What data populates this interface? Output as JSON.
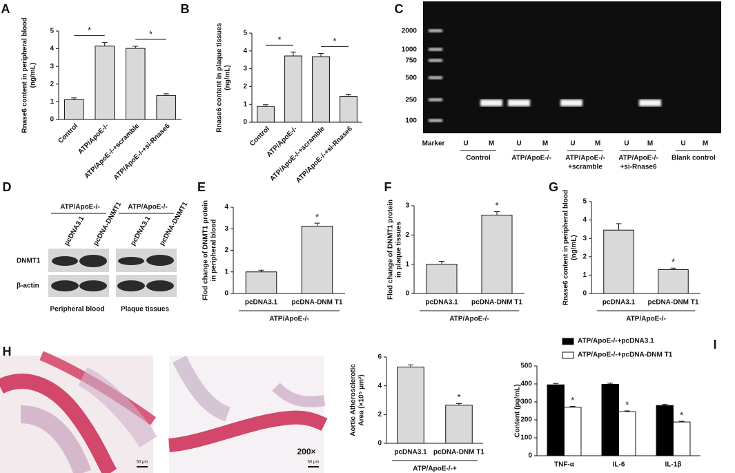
{
  "chart_data": [
    {
      "type": "bar",
      "label": "A",
      "ylabel": [
        "Rnase6 content in peripheral blood",
        "(ng/mL)"
      ],
      "categories": [
        "Control",
        "ATP/ApoE-/-",
        "ATP/ApoE-/-+scramble",
        "ATP/ApoE-/-+si-Rnase6"
      ],
      "values": [
        1.12,
        4.15,
        4.02,
        1.35
      ],
      "errors": [
        0.1,
        0.2,
        0.12,
        0.1
      ],
      "color": "#d9d9d9",
      "ylim": [
        0,
        5
      ],
      "yticks": [
        0,
        1,
        2,
        3,
        4,
        5
      ],
      "brackets": [
        {
          "text": "*"
        },
        {
          "text": "*"
        }
      ]
    },
    {
      "type": "bar",
      "label": "B",
      "ylabel": [
        "Rnase6 content in plaque tissues",
        "(ng/mL)"
      ],
      "categories": [
        "Control",
        "ATP/ApoE-/-",
        "ATP/ApoE-/-+scramble",
        "ATP/ApoE-/-+si-Rnase6"
      ],
      "values": [
        0.88,
        3.72,
        3.68,
        1.45
      ],
      "errors": [
        0.1,
        0.22,
        0.18,
        0.12
      ],
      "color": "#d9d9d9",
      "ylim": [
        0,
        5
      ],
      "yticks": [
        0,
        1,
        2,
        3,
        4,
        5
      ],
      "brackets": [
        {
          "text": "*"
        },
        {
          "text": "*"
        }
      ]
    },
    {
      "type": "bar",
      "label": "E",
      "ylabel": [
        "Flod change of DNMT1 protein",
        "in peripheral blood"
      ],
      "categories": [
        "pcDNA3.1",
        "pcDNA-DNM T1"
      ],
      "values": [
        1.0,
        3.12
      ],
      "errors": [
        0.08,
        0.14
      ],
      "stars": [
        null,
        "*"
      ],
      "group": "ATP/ApoE-/-",
      "color": "#d9d9d9",
      "ylim": [
        0,
        4
      ],
      "yticks": [
        0,
        1,
        2,
        3,
        4
      ]
    },
    {
      "type": "bar",
      "label": "F",
      "ylabel": [
        "Flod change of DNMT1 protein",
        "in plaque tissues"
      ],
      "categories": [
        "pcDNA3.1",
        "pcDNA-DNM T1"
      ],
      "values": [
        1.0,
        2.68
      ],
      "errors": [
        0.1,
        0.12
      ],
      "stars": [
        null,
        "*"
      ],
      "group": "ATP/ApoE-/-",
      "color": "#d9d9d9",
      "ylim": [
        0,
        3
      ],
      "yticks": [
        0,
        1,
        2,
        3
      ]
    },
    {
      "type": "bar",
      "label": "G",
      "ylabel": [
        "Rnase6 content in peripheral blood",
        "(ng/mL)"
      ],
      "categories": [
        "pcDNA3.1",
        "pcDNA-DNM T1"
      ],
      "values": [
        3.45,
        1.3
      ],
      "errors": [
        0.35,
        0.08
      ],
      "stars": [
        null,
        "*"
      ],
      "group": "ATP/ApoE-/-",
      "color": "#d9d9d9",
      "ylim": [
        0,
        5
      ],
      "yticks": [
        0,
        1,
        2,
        3,
        4,
        5
      ]
    },
    {
      "type": "bar",
      "ylabel": [
        "Aortic Atherosclerotic",
        "Area (×10⁵ μm²)"
      ],
      "categories": [
        "pcDNA3.1",
        "pcDNA-DNM T1"
      ],
      "values": [
        5.3,
        2.65
      ],
      "errors": [
        0.15,
        0.12
      ],
      "stars": [
        null,
        "*"
      ],
      "group": "ATP/ApoE-/-+",
      "color": "#d9d9d9",
      "ylim": [
        0,
        6
      ],
      "yticks": [
        0,
        2,
        4,
        6
      ]
    },
    {
      "type": "bar",
      "label": "I",
      "ylabel": [
        "Content (pg/mL)"
      ],
      "categories": [
        "TNF-α",
        "IL-6",
        "IL-1β"
      ],
      "series": [
        {
          "name": "ATP/ApoE-/-+pcDNA3.1",
          "color": "#000000",
          "values": [
            395,
            398,
            280
          ],
          "errors": [
            8,
            6,
            6
          ]
        },
        {
          "name": "ATP/ApoE-/-+pcDNA-DNM T1",
          "color": "#ffffff",
          "values": [
            270,
            245,
            188
          ],
          "errors": [
            5,
            5,
            4
          ],
          "stars": [
            "*",
            "*",
            "*"
          ]
        }
      ],
      "ylim": [
        0,
        500
      ],
      "yticks": [
        0,
        100,
        200,
        300,
        400,
        500
      ]
    }
  ],
  "gel": {
    "label": "C",
    "markers": [
      2000,
      1000,
      750,
      500,
      250,
      100
    ],
    "lanes": [
      "Marker",
      "U",
      "M",
      "U",
      "M",
      "U",
      "M",
      "U",
      "M",
      "U",
      "M"
    ],
    "groups": [
      [
        "Control"
      ],
      [
        "ATP/ApoE-/-"
      ],
      [
        "ATP/ApoE-/-",
        "+scramble"
      ],
      [
        "ATP/ApoE-/-",
        "+si-Rnase6"
      ],
      [
        "Blank control"
      ]
    ]
  },
  "western_blot": {
    "label": "D",
    "groups": [
      "ATP/ApoE-/-",
      "ATP/ApoE-/-"
    ],
    "lanes": [
      "pcDNA3.1",
      "pcDNA-DNMT1",
      "pcDNA3.1",
      "pcDNA-DNMT1"
    ],
    "proteins": [
      "DNMT1",
      "β-actin"
    ],
    "tissues": [
      "Peripheral blood",
      "Plaque tissues"
    ]
  },
  "histology": {
    "label": "H",
    "magnification": "200×",
    "scale_bars": [
      "50 μm",
      "50 μm"
    ]
  }
}
